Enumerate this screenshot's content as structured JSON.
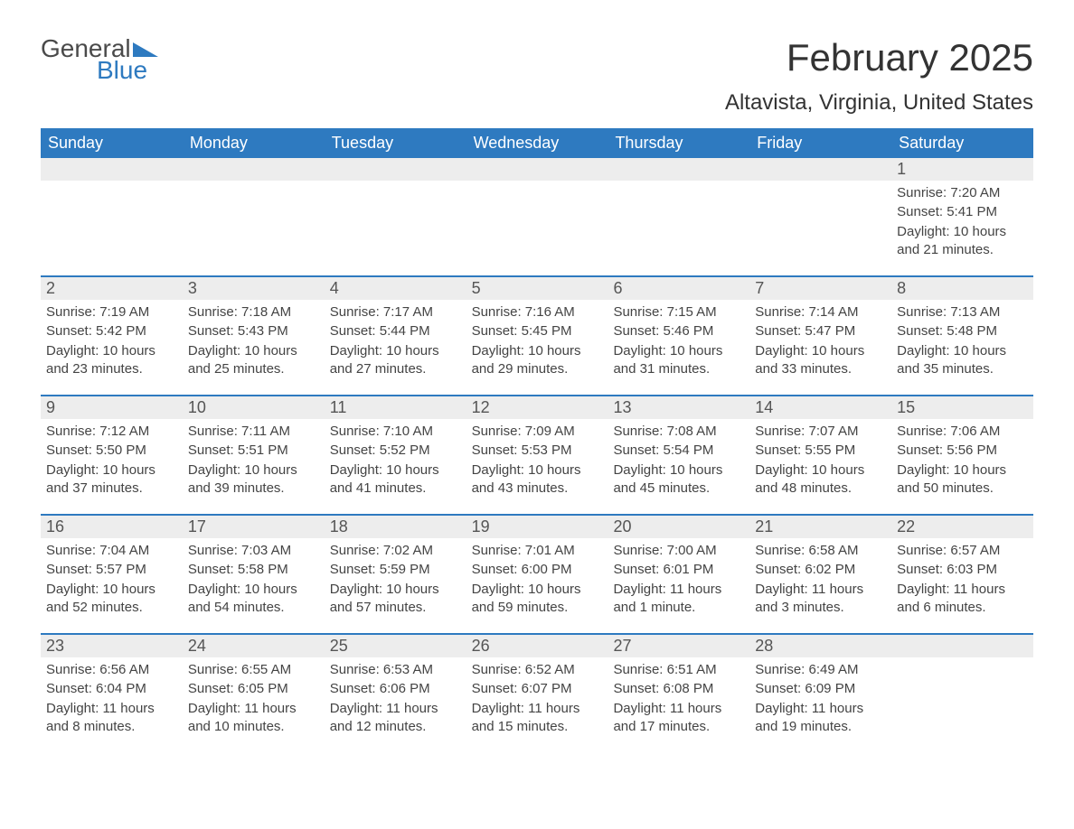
{
  "brand": {
    "top": "General",
    "bottom": "Blue"
  },
  "title": "February 2025",
  "location": "Altavista, Virginia, United States",
  "colors": {
    "header_bg": "#2e7ac0",
    "header_text": "#ffffff",
    "daynum_bg": "#ededed",
    "daynum_text": "#555555",
    "body_text": "#444444",
    "page_bg": "#ffffff",
    "logo_gray": "#4a4a4a",
    "logo_blue": "#2e7ac0",
    "week_divider": "#2e7ac0"
  },
  "typography": {
    "title_fontsize": 42,
    "location_fontsize": 24,
    "header_fontsize": 18,
    "daynum_fontsize": 18,
    "body_fontsize": 15,
    "logo_fontsize": 28
  },
  "day_labels": [
    "Sunday",
    "Monday",
    "Tuesday",
    "Wednesday",
    "Thursday",
    "Friday",
    "Saturday"
  ],
  "weeks": [
    [
      {
        "n": "",
        "sunrise": "",
        "sunset": "",
        "daylight": ""
      },
      {
        "n": "",
        "sunrise": "",
        "sunset": "",
        "daylight": ""
      },
      {
        "n": "",
        "sunrise": "",
        "sunset": "",
        "daylight": ""
      },
      {
        "n": "",
        "sunrise": "",
        "sunset": "",
        "daylight": ""
      },
      {
        "n": "",
        "sunrise": "",
        "sunset": "",
        "daylight": ""
      },
      {
        "n": "",
        "sunrise": "",
        "sunset": "",
        "daylight": ""
      },
      {
        "n": "1",
        "sunrise": "Sunrise: 7:20 AM",
        "sunset": "Sunset: 5:41 PM",
        "daylight": "Daylight: 10 hours and 21 minutes."
      }
    ],
    [
      {
        "n": "2",
        "sunrise": "Sunrise: 7:19 AM",
        "sunset": "Sunset: 5:42 PM",
        "daylight": "Daylight: 10 hours and 23 minutes."
      },
      {
        "n": "3",
        "sunrise": "Sunrise: 7:18 AM",
        "sunset": "Sunset: 5:43 PM",
        "daylight": "Daylight: 10 hours and 25 minutes."
      },
      {
        "n": "4",
        "sunrise": "Sunrise: 7:17 AM",
        "sunset": "Sunset: 5:44 PM",
        "daylight": "Daylight: 10 hours and 27 minutes."
      },
      {
        "n": "5",
        "sunrise": "Sunrise: 7:16 AM",
        "sunset": "Sunset: 5:45 PM",
        "daylight": "Daylight: 10 hours and 29 minutes."
      },
      {
        "n": "6",
        "sunrise": "Sunrise: 7:15 AM",
        "sunset": "Sunset: 5:46 PM",
        "daylight": "Daylight: 10 hours and 31 minutes."
      },
      {
        "n": "7",
        "sunrise": "Sunrise: 7:14 AM",
        "sunset": "Sunset: 5:47 PM",
        "daylight": "Daylight: 10 hours and 33 minutes."
      },
      {
        "n": "8",
        "sunrise": "Sunrise: 7:13 AM",
        "sunset": "Sunset: 5:48 PM",
        "daylight": "Daylight: 10 hours and 35 minutes."
      }
    ],
    [
      {
        "n": "9",
        "sunrise": "Sunrise: 7:12 AM",
        "sunset": "Sunset: 5:50 PM",
        "daylight": "Daylight: 10 hours and 37 minutes."
      },
      {
        "n": "10",
        "sunrise": "Sunrise: 7:11 AM",
        "sunset": "Sunset: 5:51 PM",
        "daylight": "Daylight: 10 hours and 39 minutes."
      },
      {
        "n": "11",
        "sunrise": "Sunrise: 7:10 AM",
        "sunset": "Sunset: 5:52 PM",
        "daylight": "Daylight: 10 hours and 41 minutes."
      },
      {
        "n": "12",
        "sunrise": "Sunrise: 7:09 AM",
        "sunset": "Sunset: 5:53 PM",
        "daylight": "Daylight: 10 hours and 43 minutes."
      },
      {
        "n": "13",
        "sunrise": "Sunrise: 7:08 AM",
        "sunset": "Sunset: 5:54 PM",
        "daylight": "Daylight: 10 hours and 45 minutes."
      },
      {
        "n": "14",
        "sunrise": "Sunrise: 7:07 AM",
        "sunset": "Sunset: 5:55 PM",
        "daylight": "Daylight: 10 hours and 48 minutes."
      },
      {
        "n": "15",
        "sunrise": "Sunrise: 7:06 AM",
        "sunset": "Sunset: 5:56 PM",
        "daylight": "Daylight: 10 hours and 50 minutes."
      }
    ],
    [
      {
        "n": "16",
        "sunrise": "Sunrise: 7:04 AM",
        "sunset": "Sunset: 5:57 PM",
        "daylight": "Daylight: 10 hours and 52 minutes."
      },
      {
        "n": "17",
        "sunrise": "Sunrise: 7:03 AM",
        "sunset": "Sunset: 5:58 PM",
        "daylight": "Daylight: 10 hours and 54 minutes."
      },
      {
        "n": "18",
        "sunrise": "Sunrise: 7:02 AM",
        "sunset": "Sunset: 5:59 PM",
        "daylight": "Daylight: 10 hours and 57 minutes."
      },
      {
        "n": "19",
        "sunrise": "Sunrise: 7:01 AM",
        "sunset": "Sunset: 6:00 PM",
        "daylight": "Daylight: 10 hours and 59 minutes."
      },
      {
        "n": "20",
        "sunrise": "Sunrise: 7:00 AM",
        "sunset": "Sunset: 6:01 PM",
        "daylight": "Daylight: 11 hours and 1 minute."
      },
      {
        "n": "21",
        "sunrise": "Sunrise: 6:58 AM",
        "sunset": "Sunset: 6:02 PM",
        "daylight": "Daylight: 11 hours and 3 minutes."
      },
      {
        "n": "22",
        "sunrise": "Sunrise: 6:57 AM",
        "sunset": "Sunset: 6:03 PM",
        "daylight": "Daylight: 11 hours and 6 minutes."
      }
    ],
    [
      {
        "n": "23",
        "sunrise": "Sunrise: 6:56 AM",
        "sunset": "Sunset: 6:04 PM",
        "daylight": "Daylight: 11 hours and 8 minutes."
      },
      {
        "n": "24",
        "sunrise": "Sunrise: 6:55 AM",
        "sunset": "Sunset: 6:05 PM",
        "daylight": "Daylight: 11 hours and 10 minutes."
      },
      {
        "n": "25",
        "sunrise": "Sunrise: 6:53 AM",
        "sunset": "Sunset: 6:06 PM",
        "daylight": "Daylight: 11 hours and 12 minutes."
      },
      {
        "n": "26",
        "sunrise": "Sunrise: 6:52 AM",
        "sunset": "Sunset: 6:07 PM",
        "daylight": "Daylight: 11 hours and 15 minutes."
      },
      {
        "n": "27",
        "sunrise": "Sunrise: 6:51 AM",
        "sunset": "Sunset: 6:08 PM",
        "daylight": "Daylight: 11 hours and 17 minutes."
      },
      {
        "n": "28",
        "sunrise": "Sunrise: 6:49 AM",
        "sunset": "Sunset: 6:09 PM",
        "daylight": "Daylight: 11 hours and 19 minutes."
      },
      {
        "n": "",
        "sunrise": "",
        "sunset": "",
        "daylight": ""
      }
    ]
  ]
}
